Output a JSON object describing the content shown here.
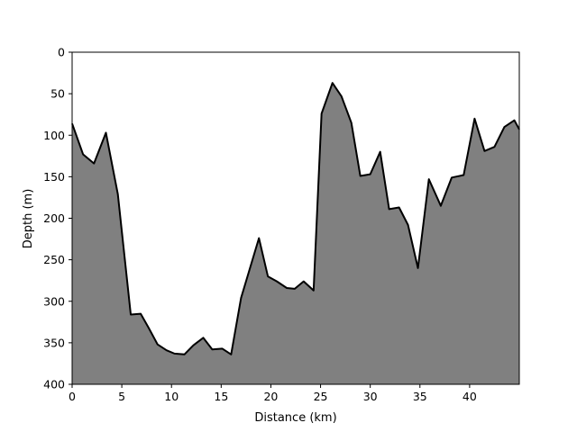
{
  "chart_data": {
    "type": "area",
    "title": "",
    "xlabel": "Distance (km)",
    "ylabel": "Depth (m)",
    "xlim": [
      0,
      45
    ],
    "ylim": [
      0,
      400
    ],
    "y_inverted": true,
    "grid": false,
    "x_ticks": [
      0,
      5,
      10,
      15,
      20,
      25,
      30,
      35,
      40
    ],
    "x_tick_labels": [
      "0",
      "5",
      "10",
      "15",
      "20",
      "25",
      "30",
      "35",
      "40"
    ],
    "y_ticks": [
      0,
      50,
      100,
      150,
      200,
      250,
      300,
      350,
      400
    ],
    "y_tick_labels": [
      "0",
      "50",
      "100",
      "150",
      "200",
      "250",
      "300",
      "350",
      "400"
    ],
    "fill_color": "#808080",
    "line_color": "#000000",
    "series": [
      {
        "x": [
          0,
          1.1,
          2.2,
          3.4,
          4.6,
          5.9,
          6.9,
          7.7,
          8.6,
          9.5,
          10.3,
          11.3,
          12.2,
          13.2,
          14.1,
          15.1,
          16.0,
          17.0,
          18.8,
          19.7,
          20.6,
          21.6,
          22.4,
          23.3,
          24.3,
          25.1,
          26.2,
          27.1,
          28.1,
          29.0,
          30.0,
          31.0,
          31.9,
          32.9,
          33.8,
          34.8,
          35.9,
          37.1,
          38.2,
          39.4,
          40.5,
          41.5,
          42.5,
          43.5,
          44.5,
          45.0
        ],
        "y": [
          86,
          123,
          134,
          97,
          171,
          316,
          315,
          332,
          352,
          359,
          363,
          364,
          353,
          344,
          358,
          357,
          364,
          296,
          224,
          270,
          276,
          284,
          285,
          276,
          287,
          74,
          37,
          53,
          85,
          149,
          147,
          120,
          189,
          187,
          208,
          260,
          153,
          185,
          151,
          148,
          80,
          119,
          114,
          90,
          82,
          93
        ]
      }
    ]
  }
}
